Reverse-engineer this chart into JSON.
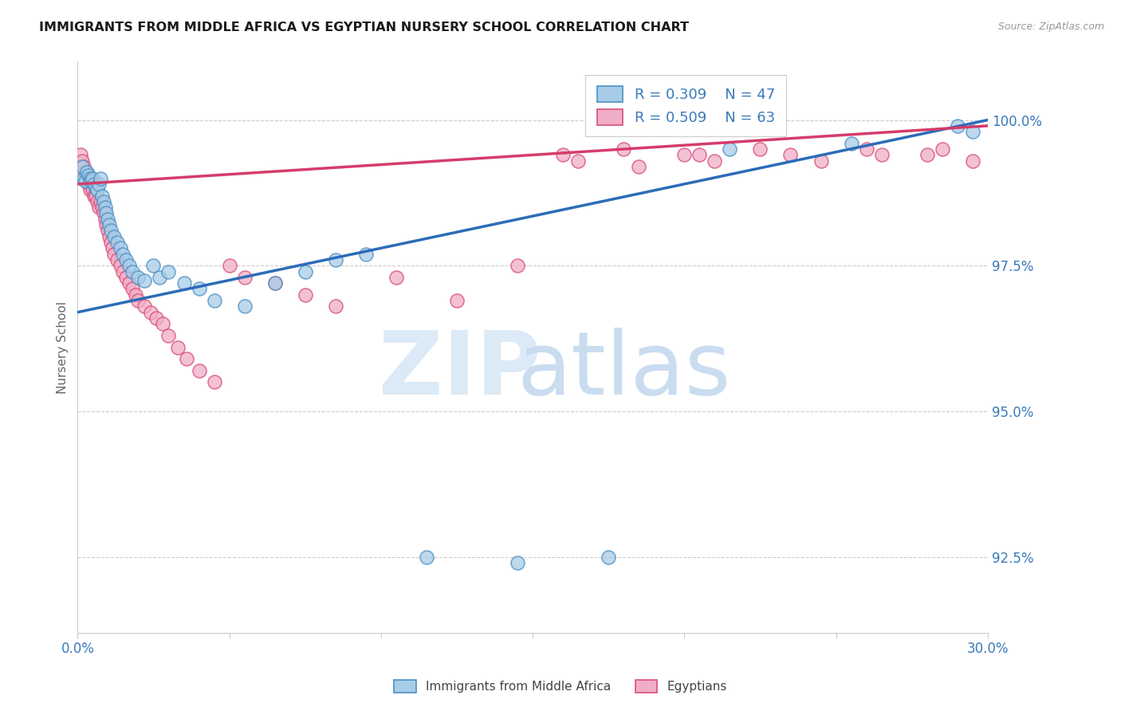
{
  "title": "IMMIGRANTS FROM MIDDLE AFRICA VS EGYPTIAN NURSERY SCHOOL CORRELATION CHART",
  "source": "Source: ZipAtlas.com",
  "ylabel": "Nursery School",
  "yticks": [
    92.5,
    95.0,
    97.5,
    100.0
  ],
  "ytick_labels": [
    "92.5%",
    "95.0%",
    "97.5%",
    "100.0%"
  ],
  "xmin": 0.0,
  "xmax": 30.0,
  "ymin": 91.2,
  "ymax": 101.0,
  "legend_blue_r": "0.309",
  "legend_blue_n": "47",
  "legend_pink_r": "0.509",
  "legend_pink_n": "63",
  "blue_color": "#a8cce8",
  "pink_color": "#f0adc8",
  "blue_edge_color": "#4a90c4",
  "pink_edge_color": "#d94f7a",
  "blue_line_color": "#2b6cb8",
  "pink_line_color": "#d63c6a",
  "blue_line_x": [
    0.0,
    30.0
  ],
  "blue_line_y": [
    96.7,
    100.0
  ],
  "pink_line_x": [
    0.0,
    30.0
  ],
  "pink_line_y": [
    98.9,
    99.9
  ],
  "blue_x": [
    0.15,
    0.2,
    0.25,
    0.3,
    0.35,
    0.4,
    0.45,
    0.5,
    0.55,
    0.6,
    0.65,
    0.7,
    0.75,
    0.8,
    0.85,
    0.9,
    0.95,
    1.0,
    1.05,
    1.1,
    1.2,
    1.3,
    1.4,
    1.5,
    1.6,
    1.7,
    1.8,
    2.0,
    2.2,
    2.5,
    2.7,
    3.0,
    3.5,
    4.0,
    4.5,
    5.5,
    6.5,
    7.5,
    9.5,
    11.5,
    14.5,
    17.5,
    21.5,
    25.5,
    29.0,
    29.5,
    8.5
  ],
  "blue_y": [
    99.2,
    99.0,
    98.95,
    99.1,
    99.05,
    99.0,
    98.95,
    99.0,
    98.9,
    98.85,
    98.8,
    98.9,
    99.0,
    98.7,
    98.6,
    98.5,
    98.4,
    98.3,
    98.2,
    98.1,
    98.0,
    97.9,
    97.8,
    97.7,
    97.6,
    97.5,
    97.4,
    97.3,
    97.25,
    97.5,
    97.3,
    97.4,
    97.2,
    97.1,
    96.9,
    96.8,
    97.2,
    97.4,
    97.7,
    92.5,
    92.4,
    92.5,
    99.5,
    99.6,
    99.9,
    99.8,
    97.6
  ],
  "pink_x": [
    0.1,
    0.15,
    0.2,
    0.25,
    0.3,
    0.35,
    0.4,
    0.45,
    0.5,
    0.55,
    0.6,
    0.65,
    0.7,
    0.75,
    0.8,
    0.85,
    0.9,
    0.95,
    1.0,
    1.05,
    1.1,
    1.15,
    1.2,
    1.3,
    1.4,
    1.5,
    1.6,
    1.7,
    1.8,
    1.9,
    2.0,
    2.2,
    2.4,
    2.6,
    2.8,
    3.0,
    3.3,
    3.6,
    4.0,
    4.5,
    5.0,
    5.5,
    6.5,
    7.5,
    8.5,
    10.5,
    12.5,
    14.5,
    16.5,
    18.5,
    20.5,
    22.5,
    24.5,
    26.5,
    28.5,
    29.5,
    16.0,
    18.0,
    20.0,
    21.0,
    23.5,
    26.0,
    28.0
  ],
  "pink_y": [
    99.4,
    99.3,
    99.2,
    99.1,
    99.0,
    98.9,
    98.8,
    98.9,
    98.8,
    98.7,
    98.7,
    98.6,
    98.5,
    98.6,
    98.5,
    98.4,
    98.3,
    98.2,
    98.1,
    98.0,
    97.9,
    97.8,
    97.7,
    97.6,
    97.5,
    97.4,
    97.3,
    97.2,
    97.1,
    97.0,
    96.9,
    96.8,
    96.7,
    96.6,
    96.5,
    96.3,
    96.1,
    95.9,
    95.7,
    95.5,
    97.5,
    97.3,
    97.2,
    97.0,
    96.8,
    97.3,
    96.9,
    97.5,
    99.3,
    99.2,
    99.4,
    99.5,
    99.3,
    99.4,
    99.5,
    99.3,
    99.4,
    99.5,
    99.4,
    99.3,
    99.4,
    99.5,
    99.4
  ]
}
